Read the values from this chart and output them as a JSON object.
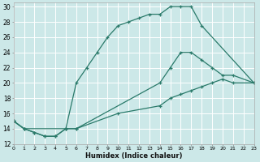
{
  "xlabel": "Humidex (Indice chaleur)",
  "bg_color": "#cce8e8",
  "grid_color": "#ffffff",
  "line_color": "#2a7a6a",
  "xlim": [
    0,
    23
  ],
  "ylim": [
    12,
    30.5
  ],
  "xticks": [
    0,
    1,
    2,
    3,
    4,
    5,
    6,
    7,
    8,
    9,
    10,
    11,
    12,
    13,
    14,
    15,
    16,
    17,
    18,
    19,
    20,
    21,
    22,
    23
  ],
  "yticks": [
    12,
    14,
    16,
    18,
    20,
    22,
    24,
    26,
    28,
    30
  ],
  "line1_x": [
    0,
    1,
    2,
    3,
    4,
    5,
    6,
    7,
    8,
    9,
    10,
    11,
    12,
    13,
    14,
    15,
    16,
    17,
    18,
    23
  ],
  "line1_y": [
    15,
    14,
    13.5,
    13,
    13,
    14,
    20,
    22,
    24,
    26,
    27.5,
    28,
    28.5,
    29,
    29,
    30,
    30,
    30,
    27.5,
    20
  ],
  "line2_x": [
    0,
    1,
    2,
    3,
    4,
    5,
    6,
    14,
    15,
    16,
    17,
    18,
    19,
    20,
    21,
    23
  ],
  "line2_y": [
    15,
    14,
    13.5,
    13,
    13,
    14,
    14,
    20,
    22,
    24,
    24,
    23,
    22,
    21,
    21,
    20
  ],
  "line3_x": [
    0,
    1,
    5,
    6,
    10,
    14,
    15,
    16,
    17,
    18,
    19,
    20,
    21,
    23
  ],
  "line3_y": [
    15,
    14,
    14,
    14,
    16,
    17,
    18,
    18.5,
    19,
    19.5,
    20,
    20.5,
    20,
    20
  ]
}
